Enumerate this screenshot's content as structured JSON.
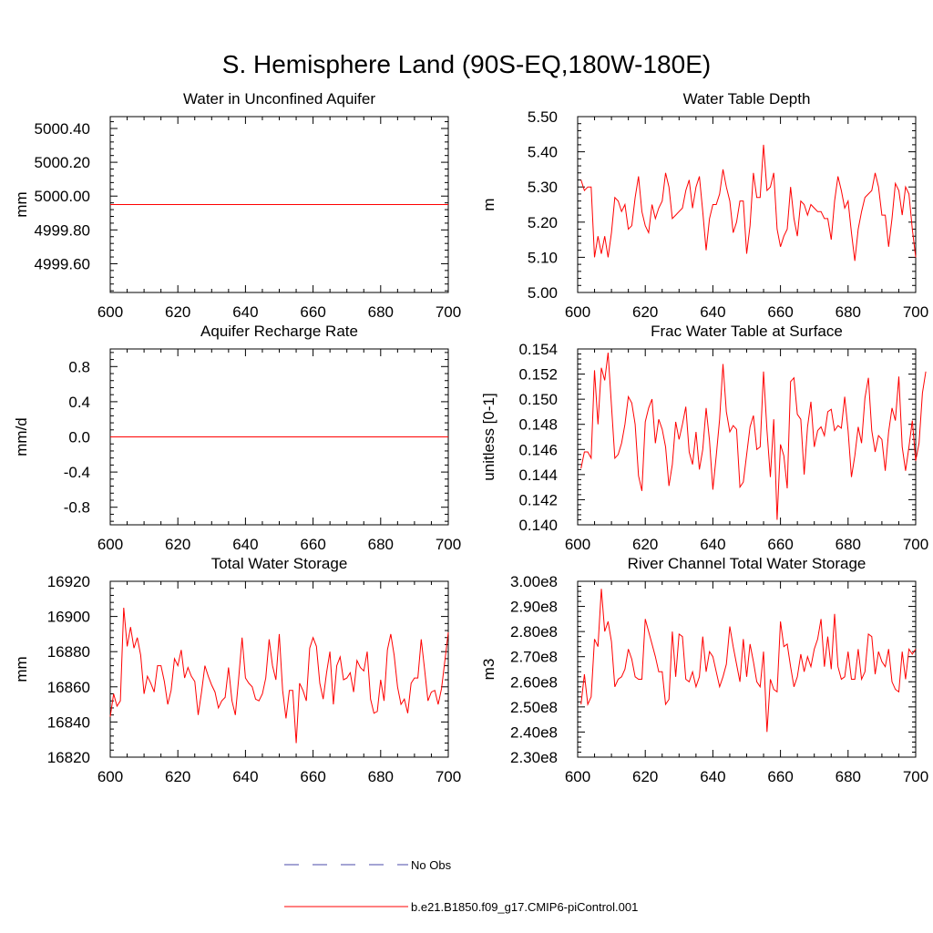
{
  "title": "S. Hemisphere Land (90S-EQ,180W-180E)",
  "colors": {
    "series": "#ff0000",
    "obs": "#4a4aa8",
    "axis": "#000000"
  },
  "legend": {
    "obs_label": "No Obs",
    "model_label": "b.e21.B1850.f09_g17.CMIP6-piControl.001"
  },
  "chart_data": [
    {
      "type": "line",
      "title": "Water in Unconfined Aquifer",
      "xlabel": "",
      "ylabel": "mm",
      "xlim": [
        600,
        700
      ],
      "ylim": [
        4999.43,
        5000.47
      ],
      "xticks": [
        600,
        620,
        640,
        660,
        680,
        700
      ],
      "xtick_labels": [
        "600",
        "620",
        "640",
        "660",
        "680",
        "700"
      ],
      "yticks": [
        4999.6,
        4999.8,
        5000.0,
        5000.2,
        5000.4
      ],
      "ytick_labels": [
        "4999.60",
        "4999.80",
        "5000.00",
        "5000.20",
        "5000.40"
      ],
      "x_start": 600,
      "x_step": 1,
      "values": [
        4999.95,
        4999.95
      ],
      "x": [
        600,
        700
      ]
    },
    {
      "type": "line",
      "title": "Water Table Depth",
      "xlabel": "",
      "ylabel": "m",
      "xlim": [
        600,
        700
      ],
      "ylim": [
        5.0,
        5.5
      ],
      "xticks": [
        600,
        620,
        640,
        660,
        680,
        700
      ],
      "xtick_labels": [
        "600",
        "620",
        "640",
        "660",
        "680",
        "700"
      ],
      "yticks": [
        5.0,
        5.1,
        5.2,
        5.3,
        5.4,
        5.5
      ],
      "ytick_labels": [
        "5.00",
        "5.10",
        "5.20",
        "5.30",
        "5.40",
        "5.50"
      ],
      "x_start": 601,
      "x_step": 1,
      "values": [
        5.32,
        5.29,
        5.3,
        5.3,
        5.1,
        5.16,
        5.11,
        5.16,
        5.1,
        5.17,
        5.27,
        5.26,
        5.23,
        5.25,
        5.18,
        5.19,
        5.27,
        5.33,
        5.23,
        5.19,
        5.17,
        5.25,
        5.21,
        5.24,
        5.26,
        5.34,
        5.3,
        5.21,
        5.22,
        5.23,
        5.24,
        5.29,
        5.32,
        5.24,
        5.3,
        5.33,
        5.23,
        5.12,
        5.21,
        5.25,
        5.25,
        5.28,
        5.35,
        5.3,
        5.26,
        5.17,
        5.2,
        5.26,
        5.26,
        5.11,
        5.19,
        5.34,
        5.27,
        5.27,
        5.42,
        5.29,
        5.3,
        5.34,
        5.18,
        5.13,
        5.16,
        5.18,
        5.3,
        5.21,
        5.16,
        5.26,
        5.25,
        5.22,
        5.25,
        5.24,
        5.23,
        5.23,
        5.21,
        5.21,
        5.15,
        5.26,
        5.33,
        5.29,
        5.24,
        5.26,
        5.17,
        5.09,
        5.18,
        5.23,
        5.27,
        5.28,
        5.29,
        5.34,
        5.3,
        5.22,
        5.22,
        5.13,
        5.21,
        5.31,
        5.29,
        5.22,
        5.3,
        5.28,
        5.18,
        5.1
      ]
    },
    {
      "type": "line",
      "title": "Aquifer Recharge Rate",
      "xlabel": "",
      "ylabel": "mm/d",
      "xlim": [
        600,
        700
      ],
      "ylim": [
        -1.0,
        1.0
      ],
      "xticks": [
        600,
        620,
        640,
        660,
        680,
        700
      ],
      "xtick_labels": [
        "600",
        "620",
        "640",
        "660",
        "680",
        "700"
      ],
      "yticks": [
        -0.8,
        -0.4,
        0.0,
        0.4,
        0.8
      ],
      "ytick_labels": [
        "-0.8",
        "-0.4",
        "0.0",
        "0.4",
        "0.8"
      ],
      "values": [
        0.0,
        0.0
      ],
      "x": [
        600,
        700
      ]
    },
    {
      "type": "line",
      "title": "Frac Water Table at Surface",
      "xlabel": "",
      "ylabel": "unitless [0-1]",
      "xlim": [
        600,
        700
      ],
      "ylim": [
        0.14,
        0.154
      ],
      "xticks": [
        600,
        620,
        640,
        660,
        680,
        700
      ],
      "xtick_labels": [
        "600",
        "620",
        "640",
        "660",
        "680",
        "700"
      ],
      "yticks": [
        0.14,
        0.142,
        0.144,
        0.146,
        0.148,
        0.15,
        0.152,
        0.154
      ],
      "ytick_labels": [
        "0.140",
        "0.142",
        "0.144",
        "0.146",
        "0.148",
        "0.150",
        "0.152",
        "0.154"
      ],
      "x_start": 601,
      "x_step": 1,
      "values": [
        0.1445,
        0.1458,
        0.1458,
        0.1453,
        0.1523,
        0.148,
        0.1525,
        0.1515,
        0.1537,
        0.1495,
        0.1453,
        0.1456,
        0.1465,
        0.148,
        0.1502,
        0.1497,
        0.148,
        0.1439,
        0.1427,
        0.1482,
        0.1493,
        0.15,
        0.1465,
        0.1484,
        0.1476,
        0.1462,
        0.1431,
        0.1448,
        0.1482,
        0.1468,
        0.148,
        0.1494,
        0.1458,
        0.1448,
        0.1474,
        0.1444,
        0.146,
        0.1493,
        0.1467,
        0.1428,
        0.1455,
        0.1484,
        0.1528,
        0.149,
        0.1474,
        0.1479,
        0.1476,
        0.143,
        0.1434,
        0.1456,
        0.1478,
        0.1487,
        0.146,
        0.1462,
        0.1522,
        0.1475,
        0.1438,
        0.1484,
        0.1404,
        0.1464,
        0.1455,
        0.1429,
        0.1514,
        0.1517,
        0.1488,
        0.1484,
        0.144,
        0.1478,
        0.1498,
        0.1462,
        0.1475,
        0.1478,
        0.1471,
        0.149,
        0.1492,
        0.1475,
        0.1479,
        0.1477,
        0.1502,
        0.1475,
        0.1438,
        0.1455,
        0.1478,
        0.1465,
        0.1501,
        0.1517,
        0.1475,
        0.1458,
        0.1471,
        0.1468,
        0.1443,
        0.1474,
        0.1493,
        0.1483,
        0.1518,
        0.1462,
        0.1443,
        0.1462,
        0.1483,
        0.1451,
        0.1465,
        0.1505,
        0.1522
      ]
    },
    {
      "type": "line",
      "title": "Total Water Storage",
      "xlabel": "",
      "ylabel": "mm",
      "xlim": [
        600,
        700
      ],
      "ylim": [
        16820,
        16920
      ],
      "xticks": [
        600,
        620,
        640,
        660,
        680,
        700
      ],
      "xtick_labels": [
        "600",
        "620",
        "640",
        "660",
        "680",
        "700"
      ],
      "yticks": [
        16820,
        16840,
        16860,
        16880,
        16900,
        16920
      ],
      "ytick_labels": [
        "16820",
        "16840",
        "16860",
        "16880",
        "16900",
        "16920"
      ],
      "x_start": 600,
      "x_step": 1,
      "values": [
        16843,
        16856,
        16849,
        16852,
        16905,
        16883,
        16894,
        16882,
        16888,
        16878,
        16856,
        16866,
        16862,
        16857,
        16872,
        16872,
        16863,
        16850,
        16858,
        16876,
        16872,
        16881,
        16865,
        16871,
        16866,
        16863,
        16844,
        16857,
        16872,
        16866,
        16861,
        16857,
        16848,
        16852,
        16854,
        16871,
        16852,
        16844,
        16865,
        16888,
        16865,
        16862,
        16860,
        16853,
        16852,
        16856,
        16865,
        16887,
        16872,
        16864,
        16890,
        16858,
        16842,
        16858,
        16858,
        16828,
        16862,
        16858,
        16852,
        16882,
        16888,
        16883,
        16862,
        16853,
        16868,
        16880,
        16850,
        16872,
        16877,
        16864,
        16865,
        16868,
        16857,
        16875,
        16871,
        16869,
        16880,
        16853,
        16845,
        16846,
        16864,
        16852,
        16881,
        16890,
        16878,
        16860,
        16850,
        16853,
        16845,
        16862,
        16865,
        16865,
        16887,
        16870,
        16852,
        16857,
        16858,
        16850,
        16859,
        16875,
        16891
      ]
    },
    {
      "type": "line",
      "title": "River Channel Total Water Storage",
      "xlabel": "",
      "ylabel": "m3",
      "xlim": [
        600,
        700
      ],
      "ylim": [
        2.3,
        3.0
      ],
      "xticks": [
        600,
        620,
        640,
        660,
        680,
        700
      ],
      "xtick_labels": [
        "600",
        "620",
        "640",
        "660",
        "680",
        "700"
      ],
      "yticks": [
        2.3,
        2.4,
        2.5,
        2.6,
        2.7,
        2.8,
        2.9,
        3.0
      ],
      "ytick_labels": [
        "2.30e8",
        "2.40e8",
        "2.50e8",
        "2.60e8",
        "2.70e8",
        "2.80e8",
        "2.90e8",
        "3.00e8"
      ],
      "x_start": 601,
      "x_step": 1,
      "values": [
        2.51,
        2.63,
        2.51,
        2.54,
        2.77,
        2.74,
        2.97,
        2.8,
        2.84,
        2.76,
        2.58,
        2.61,
        2.62,
        2.65,
        2.73,
        2.69,
        2.62,
        2.61,
        2.61,
        2.85,
        2.8,
        2.75,
        2.7,
        2.64,
        2.64,
        2.51,
        2.53,
        2.8,
        2.62,
        2.79,
        2.78,
        2.61,
        2.6,
        2.64,
        2.58,
        2.62,
        2.78,
        2.64,
        2.72,
        2.7,
        2.64,
        2.58,
        2.62,
        2.67,
        2.82,
        2.74,
        2.67,
        2.6,
        2.77,
        2.62,
        2.75,
        2.68,
        2.6,
        2.58,
        2.72,
        2.4,
        2.61,
        2.57,
        2.56,
        2.84,
        2.74,
        2.75,
        2.66,
        2.58,
        2.62,
        2.71,
        2.64,
        2.7,
        2.66,
        2.73,
        2.77,
        2.85,
        2.66,
        2.78,
        2.65,
        2.87,
        2.66,
        2.61,
        2.62,
        2.72,
        2.61,
        2.61,
        2.73,
        2.61,
        2.64,
        2.79,
        2.78,
        2.63,
        2.72,
        2.68,
        2.66,
        2.73,
        2.6,
        2.57,
        2.56,
        2.72,
        2.61,
        2.73,
        2.71,
        2.73
      ]
    }
  ]
}
